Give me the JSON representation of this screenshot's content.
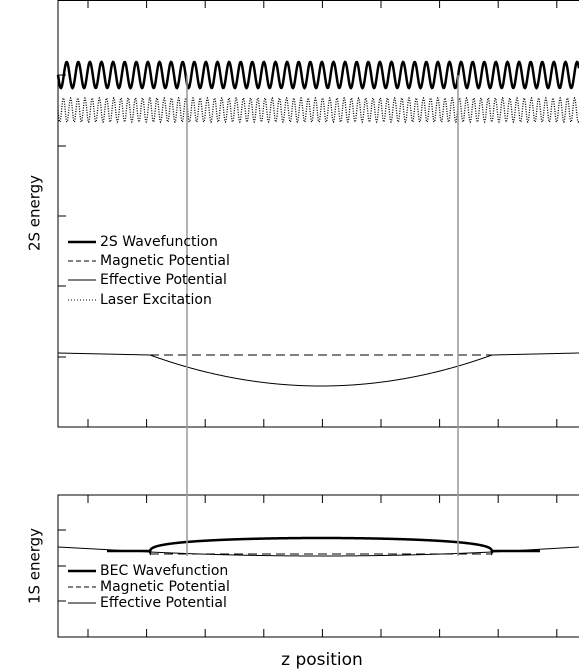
{
  "top_panel": {
    "y_label": "2S energy",
    "legend": [
      "2S Wavefunction",
      "Magnetic Potential",
      "Effective Potential",
      "Laser Excitation"
    ]
  },
  "bottom_panel": {
    "y_label": "1S energy",
    "legend": [
      "BEC Wavefunction",
      "Magnetic Potential",
      "Effective Potential"
    ]
  },
  "x_label": "z position"
}
